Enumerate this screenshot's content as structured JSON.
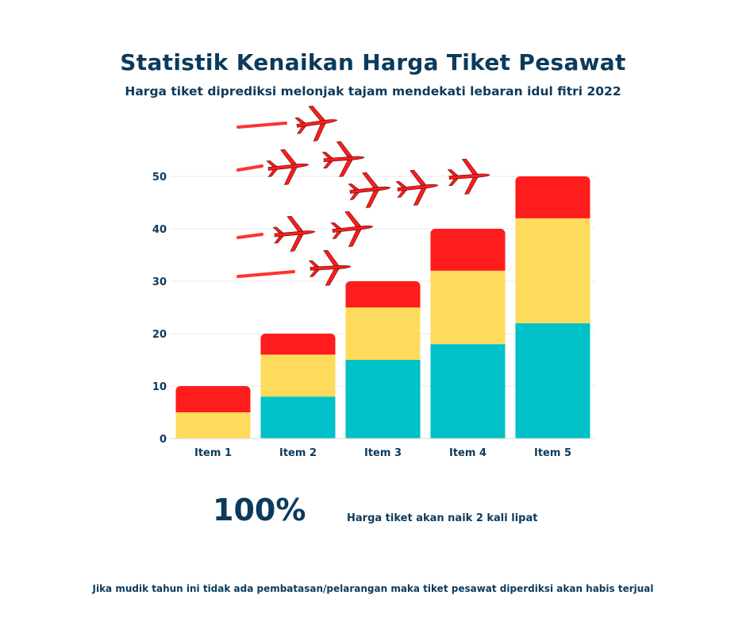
{
  "header": {
    "title": "Statistik Kenaikan Harga Tiket Pesawat",
    "subtitle": "Harga tiket diprediksi melonjak tajam mendekati lebaran idul fitri 2022"
  },
  "chart_data": {
    "type": "bar",
    "stacked": true,
    "categories": [
      "Item 1",
      "Item 2",
      "Item 3",
      "Item 4",
      "Item 5"
    ],
    "series": [
      {
        "values": [
          0,
          8,
          15,
          18,
          22
        ],
        "color": "#00c1c8"
      },
      {
        "values": [
          5,
          8,
          10,
          14,
          20
        ],
        "color": "#fedb5c"
      },
      {
        "values": [
          5,
          4,
          5,
          8,
          8
        ],
        "color": "#ff1c1c"
      }
    ],
    "ylim": [
      0,
      50
    ],
    "yticks": [
      0,
      10,
      20,
      30,
      40,
      50
    ],
    "grid": true,
    "legend": "none"
  },
  "decoration": {
    "icon": "airplane-icon",
    "color": "#ff1c1c",
    "count": 10
  },
  "stat": {
    "value": "100%",
    "description": "Harga tiket akan naik 2 kali lipat"
  },
  "footnote": "Jika mudik tahun ini tidak ada pembatasan/pelarangan maka tiket pesawat diperdiksi akan habis terjual"
}
